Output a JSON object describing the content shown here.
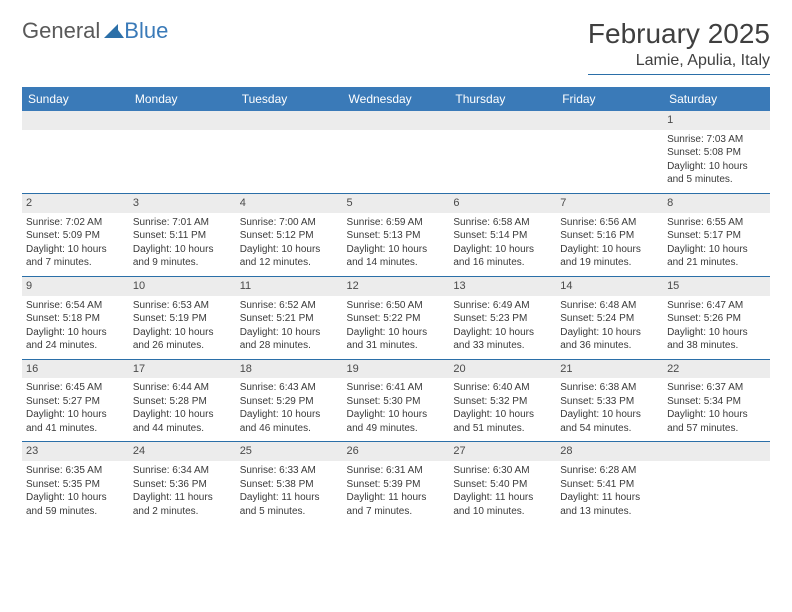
{
  "logo": {
    "word1": "General",
    "word2": "Blue"
  },
  "title": "February 2025",
  "location": "Lamie, Apulia, Italy",
  "colors": {
    "header_bg": "#3a7ab8",
    "header_text": "#ffffff",
    "row_border": "#2b6fa8",
    "daynum_bg": "#ececec",
    "body_text": "#3a3a3a",
    "logo_gray": "#595959",
    "logo_blue": "#3a7ab8",
    "page_bg": "#ffffff"
  },
  "day_names": [
    "Sunday",
    "Monday",
    "Tuesday",
    "Wednesday",
    "Thursday",
    "Friday",
    "Saturday"
  ],
  "weeks": [
    [
      null,
      null,
      null,
      null,
      null,
      null,
      {
        "n": "1",
        "sr": "Sunrise: 7:03 AM",
        "ss": "Sunset: 5:08 PM",
        "dl": "Daylight: 10 hours and 5 minutes."
      }
    ],
    [
      {
        "n": "2",
        "sr": "Sunrise: 7:02 AM",
        "ss": "Sunset: 5:09 PM",
        "dl": "Daylight: 10 hours and 7 minutes."
      },
      {
        "n": "3",
        "sr": "Sunrise: 7:01 AM",
        "ss": "Sunset: 5:11 PM",
        "dl": "Daylight: 10 hours and 9 minutes."
      },
      {
        "n": "4",
        "sr": "Sunrise: 7:00 AM",
        "ss": "Sunset: 5:12 PM",
        "dl": "Daylight: 10 hours and 12 minutes."
      },
      {
        "n": "5",
        "sr": "Sunrise: 6:59 AM",
        "ss": "Sunset: 5:13 PM",
        "dl": "Daylight: 10 hours and 14 minutes."
      },
      {
        "n": "6",
        "sr": "Sunrise: 6:58 AM",
        "ss": "Sunset: 5:14 PM",
        "dl": "Daylight: 10 hours and 16 minutes."
      },
      {
        "n": "7",
        "sr": "Sunrise: 6:56 AM",
        "ss": "Sunset: 5:16 PM",
        "dl": "Daylight: 10 hours and 19 minutes."
      },
      {
        "n": "8",
        "sr": "Sunrise: 6:55 AM",
        "ss": "Sunset: 5:17 PM",
        "dl": "Daylight: 10 hours and 21 minutes."
      }
    ],
    [
      {
        "n": "9",
        "sr": "Sunrise: 6:54 AM",
        "ss": "Sunset: 5:18 PM",
        "dl": "Daylight: 10 hours and 24 minutes."
      },
      {
        "n": "10",
        "sr": "Sunrise: 6:53 AM",
        "ss": "Sunset: 5:19 PM",
        "dl": "Daylight: 10 hours and 26 minutes."
      },
      {
        "n": "11",
        "sr": "Sunrise: 6:52 AM",
        "ss": "Sunset: 5:21 PM",
        "dl": "Daylight: 10 hours and 28 minutes."
      },
      {
        "n": "12",
        "sr": "Sunrise: 6:50 AM",
        "ss": "Sunset: 5:22 PM",
        "dl": "Daylight: 10 hours and 31 minutes."
      },
      {
        "n": "13",
        "sr": "Sunrise: 6:49 AM",
        "ss": "Sunset: 5:23 PM",
        "dl": "Daylight: 10 hours and 33 minutes."
      },
      {
        "n": "14",
        "sr": "Sunrise: 6:48 AM",
        "ss": "Sunset: 5:24 PM",
        "dl": "Daylight: 10 hours and 36 minutes."
      },
      {
        "n": "15",
        "sr": "Sunrise: 6:47 AM",
        "ss": "Sunset: 5:26 PM",
        "dl": "Daylight: 10 hours and 38 minutes."
      }
    ],
    [
      {
        "n": "16",
        "sr": "Sunrise: 6:45 AM",
        "ss": "Sunset: 5:27 PM",
        "dl": "Daylight: 10 hours and 41 minutes."
      },
      {
        "n": "17",
        "sr": "Sunrise: 6:44 AM",
        "ss": "Sunset: 5:28 PM",
        "dl": "Daylight: 10 hours and 44 minutes."
      },
      {
        "n": "18",
        "sr": "Sunrise: 6:43 AM",
        "ss": "Sunset: 5:29 PM",
        "dl": "Daylight: 10 hours and 46 minutes."
      },
      {
        "n": "19",
        "sr": "Sunrise: 6:41 AM",
        "ss": "Sunset: 5:30 PM",
        "dl": "Daylight: 10 hours and 49 minutes."
      },
      {
        "n": "20",
        "sr": "Sunrise: 6:40 AM",
        "ss": "Sunset: 5:32 PM",
        "dl": "Daylight: 10 hours and 51 minutes."
      },
      {
        "n": "21",
        "sr": "Sunrise: 6:38 AM",
        "ss": "Sunset: 5:33 PM",
        "dl": "Daylight: 10 hours and 54 minutes."
      },
      {
        "n": "22",
        "sr": "Sunrise: 6:37 AM",
        "ss": "Sunset: 5:34 PM",
        "dl": "Daylight: 10 hours and 57 minutes."
      }
    ],
    [
      {
        "n": "23",
        "sr": "Sunrise: 6:35 AM",
        "ss": "Sunset: 5:35 PM",
        "dl": "Daylight: 10 hours and 59 minutes."
      },
      {
        "n": "24",
        "sr": "Sunrise: 6:34 AM",
        "ss": "Sunset: 5:36 PM",
        "dl": "Daylight: 11 hours and 2 minutes."
      },
      {
        "n": "25",
        "sr": "Sunrise: 6:33 AM",
        "ss": "Sunset: 5:38 PM",
        "dl": "Daylight: 11 hours and 5 minutes."
      },
      {
        "n": "26",
        "sr": "Sunrise: 6:31 AM",
        "ss": "Sunset: 5:39 PM",
        "dl": "Daylight: 11 hours and 7 minutes."
      },
      {
        "n": "27",
        "sr": "Sunrise: 6:30 AM",
        "ss": "Sunset: 5:40 PM",
        "dl": "Daylight: 11 hours and 10 minutes."
      },
      {
        "n": "28",
        "sr": "Sunrise: 6:28 AM",
        "ss": "Sunset: 5:41 PM",
        "dl": "Daylight: 11 hours and 13 minutes."
      },
      null
    ]
  ]
}
